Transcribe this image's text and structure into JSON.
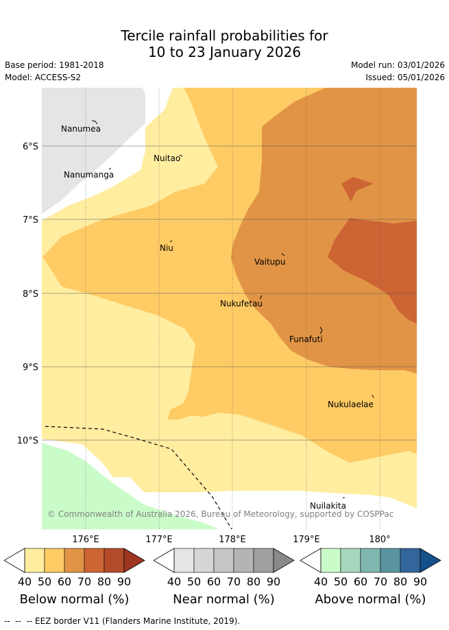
{
  "title_line1": "Tercile rainfall probabilities for",
  "title_line2": "10 to 23 January 2026",
  "base_period": "Base period: 1981-2018",
  "model": "Model: ACCESS-S2",
  "model_run": "Model run: 03/01/2026",
  "issued": "Issued: 05/01/2026",
  "islands": {
    "nanumea": "Nanumea",
    "nuitao": "Nuitao",
    "nanumanga": "Nanumanga",
    "niu": "Niu",
    "vaitupu": "Vaitupu",
    "nukufetau": "Nukufetau",
    "funafuti": "Funafuti",
    "nukulaelae": "Nukulaelae",
    "nuilakita": "Nuilakita"
  },
  "lat_labels": [
    "6°S",
    "7°S",
    "8°S",
    "9°S",
    "10°S"
  ],
  "lon_labels": [
    "176°E",
    "177°E",
    "178°E",
    "179°E",
    "180°"
  ],
  "copyright": "© Commonwealth of Australia 2026, Bureau of Meteorology, supported by COSPPac",
  "colorbars": [
    {
      "title": "Below normal (%)",
      "ticks": [
        "40",
        "50",
        "60",
        "70",
        "80",
        "90"
      ],
      "colors": [
        "#ffeda0",
        "#fecb65",
        "#e19446",
        "#cd6434",
        "#b44b2a",
        "#9e3622"
      ]
    },
    {
      "title": "Near normal (%)",
      "ticks": [
        "40",
        "50",
        "60",
        "70",
        "80",
        "90"
      ],
      "colors": [
        "#e5e5e5",
        "#d6d6d6",
        "#c6c6c6",
        "#b4b4b4",
        "#a0a0a0",
        "#8a8a8a"
      ]
    },
    {
      "title": "Above normal (%)",
      "ticks": [
        "40",
        "50",
        "60",
        "70",
        "80",
        "90"
      ],
      "colors": [
        "#c9fcc9",
        "#a5d8bf",
        "#80b7b1",
        "#5a959f",
        "#33669a",
        "#15508a"
      ]
    }
  ],
  "footer": "--  --  -- EEZ border V11 (Flanders Marine Institute, 2019)."
}
